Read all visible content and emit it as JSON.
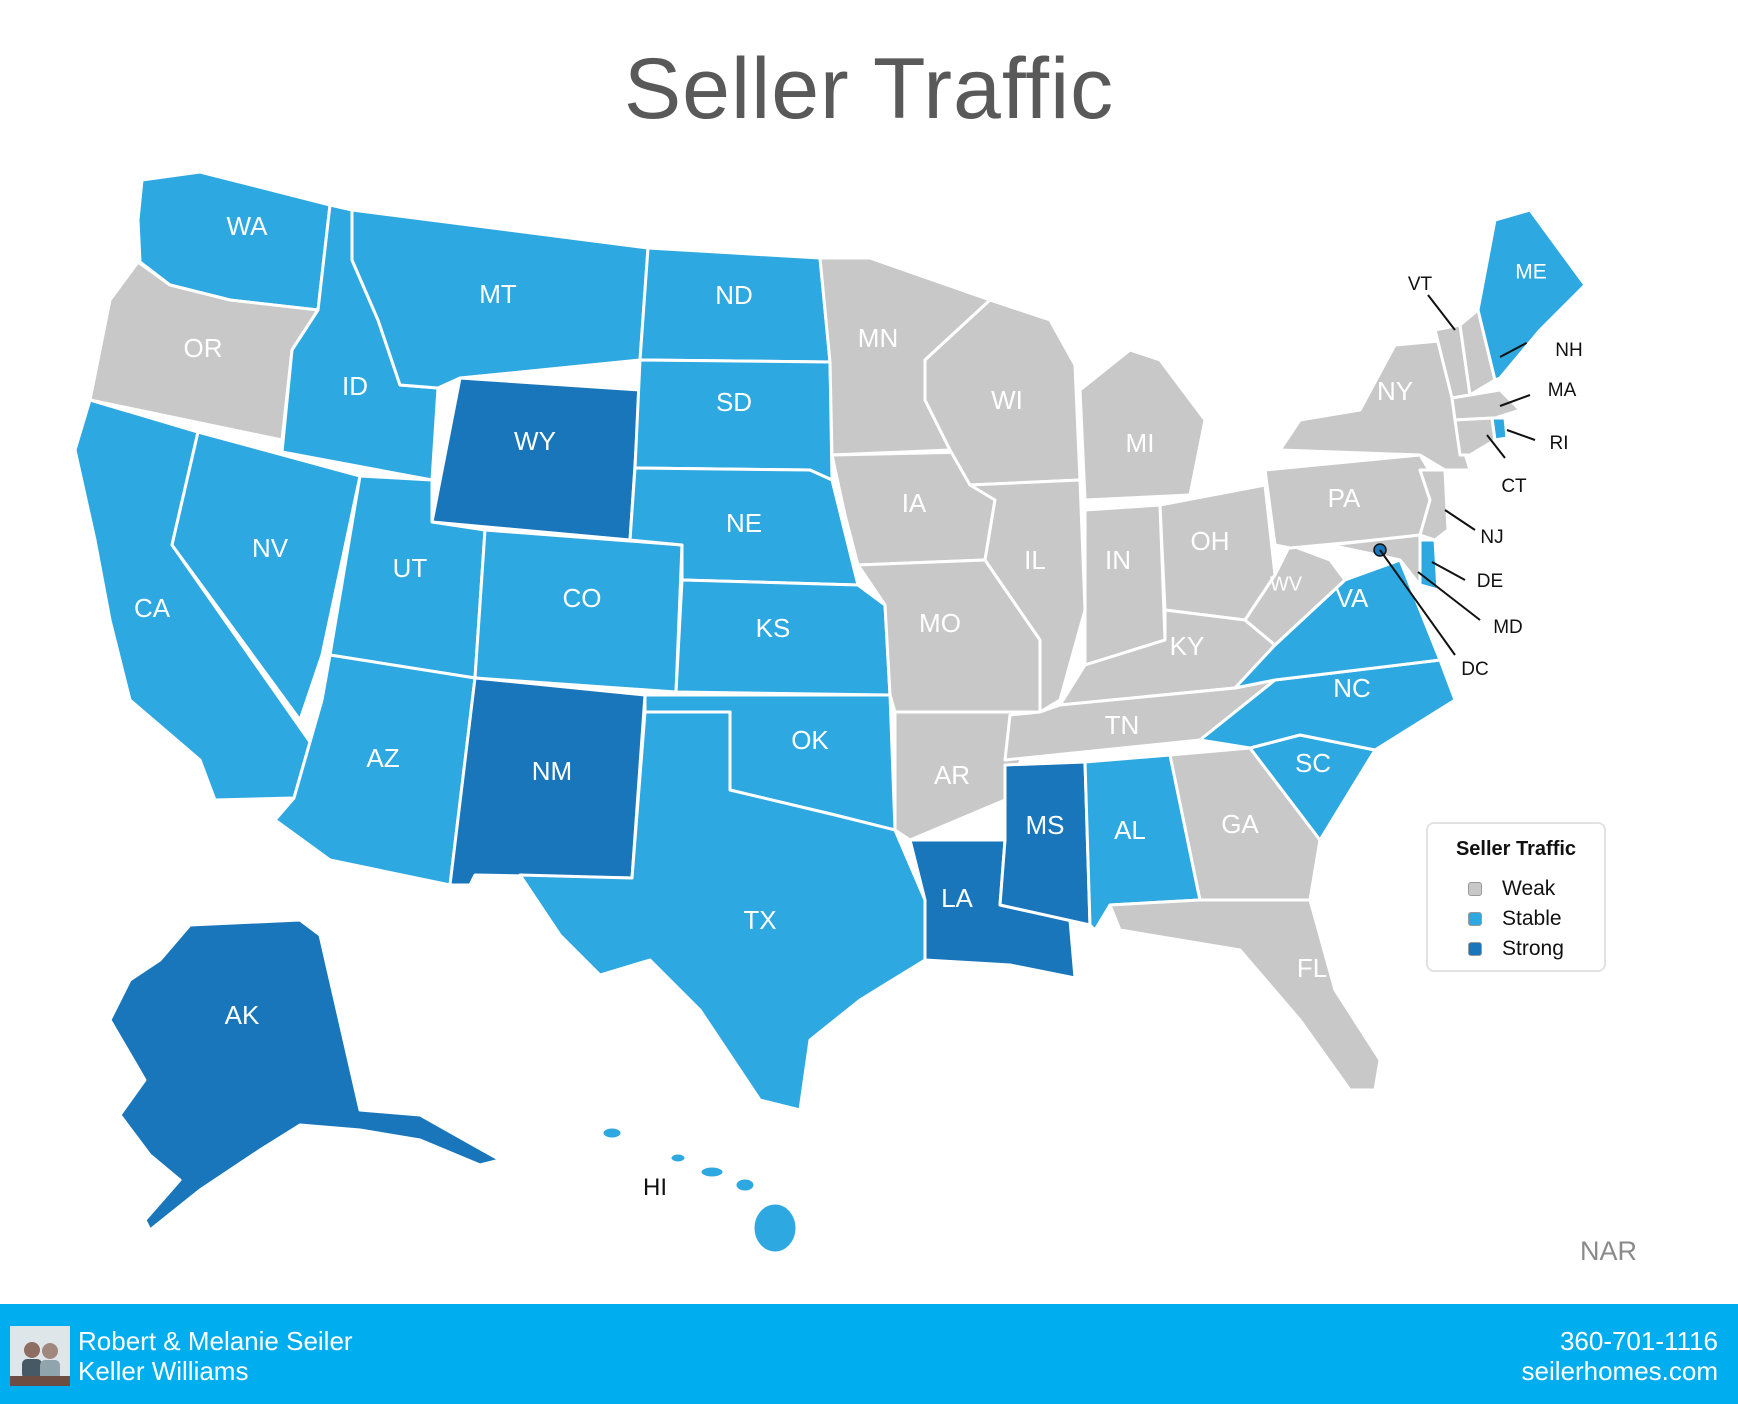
{
  "title": "Seller Traffic",
  "legend": {
    "title": "Seller Traffic",
    "items": [
      {
        "label": "Weak",
        "color": "#c8c8c8"
      },
      {
        "label": "Stable",
        "color": "#2ea8e0"
      },
      {
        "label": "Strong",
        "color": "#1976bb"
      }
    ]
  },
  "colors": {
    "Weak": "#c8c8c8",
    "Stable": "#2ea8e0",
    "Strong": "#1976bb"
  },
  "states": {
    "WA": "Stable",
    "OR": "Weak",
    "CA": "Stable",
    "NV": "Stable",
    "ID": "Stable",
    "MT": "Stable",
    "WY": "Strong",
    "UT": "Stable",
    "AZ": "Stable",
    "CO": "Stable",
    "NM": "Strong",
    "ND": "Stable",
    "SD": "Stable",
    "NE": "Stable",
    "KS": "Stable",
    "OK": "Stable",
    "TX": "Stable",
    "MN": "Weak",
    "IA": "Weak",
    "MO": "Weak",
    "AR": "Weak",
    "LA": "Strong",
    "WI": "Weak",
    "IL": "Weak",
    "MI": "Weak",
    "IN": "Weak",
    "OH": "Weak",
    "KY": "Weak",
    "TN": "Weak",
    "MS": "Strong",
    "AL": "Stable",
    "GA": "Weak",
    "FL": "Weak",
    "SC": "Stable",
    "NC": "Stable",
    "VA": "Stable",
    "WV": "Weak",
    "PA": "Weak",
    "NY": "Weak",
    "VT": "Weak",
    "NH": "Weak",
    "ME": "Stable",
    "MA": "Weak",
    "RI": "Stable",
    "CT": "Weak",
    "NJ": "Weak",
    "DE": "Stable",
    "MD": "Weak",
    "DC": "Strong",
    "AK": "Strong",
    "HI": "Stable"
  },
  "source": "NAR",
  "footer": {
    "agent_name": "Robert & Melanie Seiler",
    "company": "Keller Williams",
    "phone": "360-701-1116",
    "website": "seilerhomes.com"
  }
}
